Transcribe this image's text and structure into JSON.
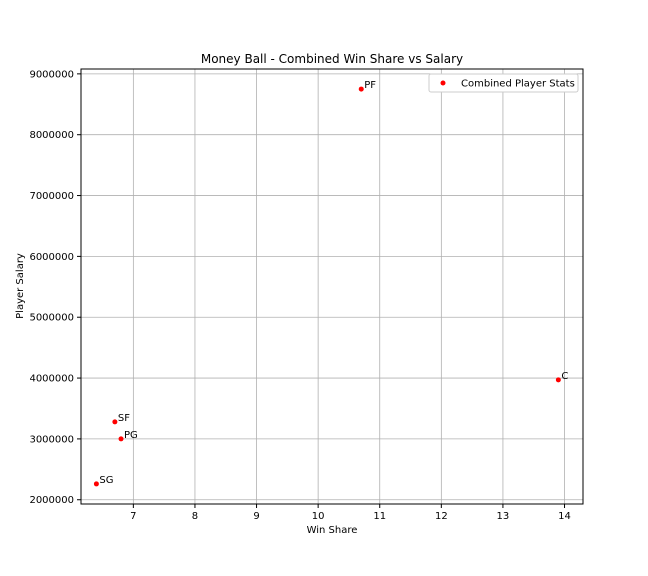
{
  "chart_data": {
    "type": "scatter",
    "title": "Money Ball - Combined Win Share vs Salary",
    "xlabel": "Win Share",
    "ylabel": "Player Salary",
    "xlim": [
      6.15,
      14.3
    ],
    "ylim": [
      1930000,
      9080000
    ],
    "xticks": [
      7,
      8,
      9,
      10,
      11,
      12,
      13,
      14
    ],
    "yticks": [
      2000000,
      3000000,
      4000000,
      5000000,
      6000000,
      7000000,
      8000000,
      9000000
    ],
    "grid": true,
    "legend": {
      "position": "top-right",
      "entries": [
        "Combined Player Stats"
      ]
    },
    "series": [
      {
        "name": "Combined Player Stats",
        "color": "#ff0000",
        "points": [
          {
            "label": "PF",
            "x": 10.7,
            "y": 8750000
          },
          {
            "label": "C",
            "x": 13.9,
            "y": 3970000
          },
          {
            "label": "SF",
            "x": 6.7,
            "y": 3280000
          },
          {
            "label": "PG",
            "x": 6.8,
            "y": 3000000
          },
          {
            "label": "SG",
            "x": 6.4,
            "y": 2260000
          }
        ]
      }
    ]
  }
}
